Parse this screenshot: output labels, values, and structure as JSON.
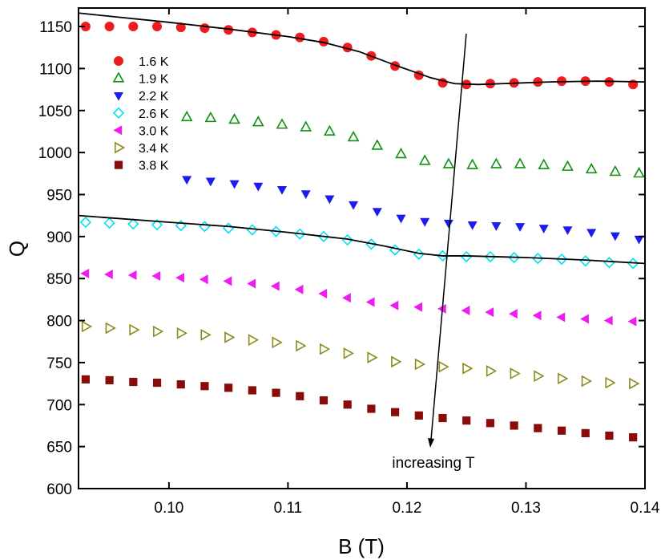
{
  "chart_data": {
    "type": "scatter",
    "xlabel": "B (T)",
    "ylabel": "Q",
    "xlim": [
      0.0924,
      0.14
    ],
    "ylim": [
      600,
      1172
    ],
    "xticks": [
      {
        "value": 0.1,
        "label": "0.10"
      },
      0.11,
      0.12,
      0.13,
      0.14
    ],
    "yticks": [
      600,
      650,
      700,
      750,
      800,
      850,
      900,
      950,
      1000,
      1050,
      1100,
      1150
    ],
    "legend": "upper left",
    "annotation": "increasing T",
    "series": [
      {
        "name": "1.6 K",
        "color": "#ee1c1c",
        "marker": "circle",
        "filled": true,
        "x": [
          0.093,
          0.095,
          0.097,
          0.099,
          0.101,
          0.103,
          0.105,
          0.107,
          0.109,
          0.111,
          0.113,
          0.115,
          0.117,
          0.119,
          0.121,
          0.123,
          0.125,
          0.127,
          0.129,
          0.131,
          0.133,
          0.135,
          0.137,
          0.139
        ],
        "values": [
          1150,
          1150,
          1150,
          1150,
          1149,
          1148,
          1146,
          1143,
          1140,
          1137,
          1132,
          1125,
          1115,
          1103,
          1092,
          1083,
          1081,
          1082,
          1083,
          1084,
          1085,
          1085,
          1084,
          1081
        ]
      },
      {
        "name": "1.9 K",
        "color": "#109010",
        "marker": "triangle-up",
        "filled": false,
        "x": [
          0.1015,
          0.1035,
          0.1055,
          0.1075,
          0.1095,
          0.1115,
          0.1135,
          0.1155,
          0.1175,
          0.1195,
          0.1215,
          0.1235,
          0.1255,
          0.1275,
          0.1295,
          0.1315,
          0.1335,
          0.1355,
          0.1375,
          0.1395
        ],
        "values": [
          1042,
          1041,
          1039,
          1036,
          1033,
          1030,
          1025,
          1018,
          1008,
          998,
          990,
          986,
          985,
          986,
          986,
          985,
          983,
          980,
          977,
          975
        ]
      },
      {
        "name": "2.2 K",
        "color": "#1c1cee",
        "marker": "triangle-down",
        "filled": true,
        "x": [
          0.1015,
          0.1035,
          0.1055,
          0.1075,
          0.1095,
          0.1115,
          0.1135,
          0.1155,
          0.1175,
          0.1195,
          0.1215,
          0.1235,
          0.1255,
          0.1275,
          0.1295,
          0.1315,
          0.1335,
          0.1355,
          0.1375,
          0.1395
        ],
        "values": [
          968,
          966,
          963,
          960,
          956,
          951,
          945,
          938,
          930,
          922,
          918,
          916,
          914,
          913,
          912,
          910,
          908,
          905,
          901,
          897
        ]
      },
      {
        "name": "2.6 K",
        "color": "#00e0ee",
        "marker": "diamond",
        "filled": false,
        "x": [
          0.093,
          0.095,
          0.097,
          0.099,
          0.101,
          0.103,
          0.105,
          0.107,
          0.109,
          0.111,
          0.113,
          0.115,
          0.117,
          0.119,
          0.121,
          0.123,
          0.125,
          0.127,
          0.129,
          0.131,
          0.133,
          0.135,
          0.137,
          0.139
        ],
        "values": [
          917,
          916,
          915,
          914,
          913,
          912,
          910,
          908,
          906,
          903,
          900,
          896,
          891,
          884,
          879,
          877,
          876,
          876,
          875,
          874,
          873,
          871,
          869,
          868
        ]
      },
      {
        "name": "3.0 K",
        "color": "#ee1cee",
        "marker": "triangle-left",
        "filled": true,
        "x": [
          0.093,
          0.095,
          0.097,
          0.099,
          0.101,
          0.103,
          0.105,
          0.107,
          0.109,
          0.111,
          0.113,
          0.115,
          0.117,
          0.119,
          0.121,
          0.123,
          0.125,
          0.127,
          0.129,
          0.131,
          0.133,
          0.135,
          0.137,
          0.139
        ],
        "values": [
          856,
          855,
          854,
          853,
          851,
          849,
          847,
          844,
          841,
          837,
          832,
          827,
          822,
          818,
          816,
          814,
          812,
          810,
          808,
          806,
          804,
          802,
          800,
          799
        ]
      },
      {
        "name": "3.4 K",
        "color": "#8b8b1c",
        "marker": "triangle-right",
        "filled": false,
        "x": [
          0.093,
          0.095,
          0.097,
          0.099,
          0.101,
          0.103,
          0.105,
          0.107,
          0.109,
          0.111,
          0.113,
          0.115,
          0.117,
          0.119,
          0.121,
          0.123,
          0.125,
          0.127,
          0.129,
          0.131,
          0.133,
          0.135,
          0.137,
          0.139
        ],
        "values": [
          793,
          791,
          789,
          787,
          785,
          783,
          780,
          777,
          774,
          770,
          766,
          761,
          756,
          751,
          748,
          745,
          743,
          740,
          737,
          734,
          731,
          728,
          726,
          725
        ]
      },
      {
        "name": "3.8 K",
        "color": "#8b0a0a",
        "marker": "square",
        "filled": true,
        "x": [
          0.093,
          0.095,
          0.097,
          0.099,
          0.101,
          0.103,
          0.105,
          0.107,
          0.109,
          0.111,
          0.113,
          0.115,
          0.117,
          0.119,
          0.121,
          0.123,
          0.125,
          0.127,
          0.129,
          0.131,
          0.133,
          0.135,
          0.137,
          0.139
        ],
        "values": [
          730,
          729,
          727,
          726,
          724,
          722,
          720,
          717,
          714,
          710,
          705,
          700,
          695,
          691,
          687,
          684,
          681,
          678,
          675,
          672,
          669,
          666,
          663,
          661
        ]
      }
    ],
    "fits": [
      {
        "color": "#000000",
        "x": [
          0.0924,
          0.1,
          0.105,
          0.11,
          0.113,
          0.116,
          0.119,
          0.122,
          0.124,
          0.126,
          0.128,
          0.132,
          0.136,
          0.14
        ],
        "values": [
          1166,
          1155,
          1147,
          1138,
          1131,
          1120,
          1104,
          1089,
          1082,
          1081,
          1082,
          1084,
          1085,
          1084
        ]
      },
      {
        "color": "#000000",
        "x": [
          0.0924,
          0.1,
          0.105,
          0.11,
          0.115,
          0.118,
          0.121,
          0.123,
          0.125,
          0.13,
          0.135,
          0.14
        ],
        "values": [
          925,
          917,
          912,
          905,
          897,
          889,
          880,
          877,
          877,
          875,
          872,
          868
        ]
      }
    ]
  }
}
